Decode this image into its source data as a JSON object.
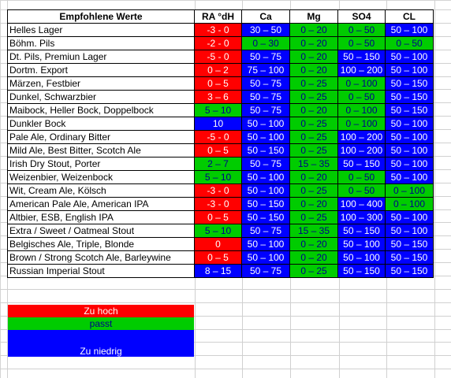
{
  "headers": [
    "Empfohlene Werte",
    "RA °dH",
    "Ca",
    "Mg",
    "SO4",
    "CL"
  ],
  "colors": {
    "red": "#ff0000",
    "green": "#00cc00",
    "blue": "#0000ff"
  },
  "rows": [
    {
      "name": "Helles Lager",
      "cells": [
        [
          "-3 - 0",
          "red"
        ],
        [
          "30 – 50",
          "blue"
        ],
        [
          "0 – 20",
          "green"
        ],
        [
          "0 – 50",
          "green"
        ],
        [
          "50 – 100",
          "blue"
        ]
      ]
    },
    {
      "name": "Böhm. Pils",
      "cells": [
        [
          "-2 - 0",
          "red"
        ],
        [
          "0 – 30",
          "green"
        ],
        [
          "0 – 20",
          "green"
        ],
        [
          "0 – 50",
          "green"
        ],
        [
          "0 – 50",
          "green"
        ]
      ]
    },
    {
      "name": "Dt. Pils, Premiun Lager",
      "cells": [
        [
          "-5 - 0",
          "red"
        ],
        [
          "50 – 75",
          "blue"
        ],
        [
          "0 – 20",
          "green"
        ],
        [
          "50 – 150",
          "blue"
        ],
        [
          "50 – 100",
          "blue"
        ]
      ]
    },
    {
      "name": "Dortm. Export",
      "cells": [
        [
          "0 – 2",
          "red"
        ],
        [
          "75 – 100",
          "blue"
        ],
        [
          "0 – 20",
          "green"
        ],
        [
          "100 – 200",
          "blue"
        ],
        [
          "50 – 100",
          "blue"
        ]
      ]
    },
    {
      "name": "Märzen, Festbier",
      "cells": [
        [
          "0 – 5",
          "red"
        ],
        [
          "50 – 75",
          "blue"
        ],
        [
          "0 – 25",
          "green"
        ],
        [
          "0 – 100",
          "green"
        ],
        [
          "50 – 150",
          "blue"
        ]
      ]
    },
    {
      "name": "Dunkel, Schwarzbier",
      "cells": [
        [
          "3 – 6",
          "red"
        ],
        [
          "50 – 75",
          "blue"
        ],
        [
          "0 – 25",
          "green"
        ],
        [
          "0 – 50",
          "green"
        ],
        [
          "50 – 150",
          "blue"
        ]
      ]
    },
    {
      "name": "Maibock, Heller Bock, Doppelbock",
      "cells": [
        [
          "5 – 10",
          "green"
        ],
        [
          "50 – 75",
          "blue"
        ],
        [
          "0 – 20",
          "green"
        ],
        [
          "0 – 100",
          "green"
        ],
        [
          "50 – 150",
          "blue"
        ]
      ]
    },
    {
      "name": "Dunkler Bock",
      "cells": [
        [
          "10",
          "blue"
        ],
        [
          "50 – 100",
          "blue"
        ],
        [
          "0 – 25",
          "green"
        ],
        [
          "0 – 100",
          "green"
        ],
        [
          "50 – 100",
          "blue"
        ]
      ]
    },
    {
      "name": "Pale Ale, Ordinary Bitter",
      "cells": [
        [
          "-5 - 0",
          "red"
        ],
        [
          "50 – 100",
          "blue"
        ],
        [
          "0 – 25",
          "green"
        ],
        [
          "100 – 200",
          "blue"
        ],
        [
          "50 – 100",
          "blue"
        ]
      ]
    },
    {
      "name": "Mild Ale, Best Bitter, Scotch Ale",
      "cells": [
        [
          "0 – 5",
          "red"
        ],
        [
          "50 – 150",
          "blue"
        ],
        [
          "0 – 25",
          "green"
        ],
        [
          "100 – 200",
          "blue"
        ],
        [
          "50 – 100",
          "blue"
        ]
      ]
    },
    {
      "name": "Irish Dry Stout, Porter",
      "cells": [
        [
          "2 – 7",
          "green"
        ],
        [
          "50 – 75",
          "blue"
        ],
        [
          "15 – 35",
          "green"
        ],
        [
          "50 – 150",
          "blue"
        ],
        [
          "50 – 100",
          "blue"
        ]
      ]
    },
    {
      "name": "Weizenbier, Weizenbock",
      "cells": [
        [
          "5 – 10",
          "green"
        ],
        [
          "50 – 100",
          "blue"
        ],
        [
          "0 – 20",
          "green"
        ],
        [
          "0 – 50",
          "green"
        ],
        [
          "50 – 100",
          "blue"
        ]
      ]
    },
    {
      "name": "Wit, Cream Ale, Kölsch",
      "cells": [
        [
          "-3 - 0",
          "red"
        ],
        [
          "50 – 100",
          "blue"
        ],
        [
          "0 – 25",
          "green"
        ],
        [
          "0 – 50",
          "green"
        ],
        [
          "0 – 100",
          "green"
        ]
      ]
    },
    {
      "name": "American Pale Ale, American IPA",
      "cells": [
        [
          "-3 - 0",
          "red"
        ],
        [
          "50 – 150",
          "blue"
        ],
        [
          "0 – 20",
          "green"
        ],
        [
          "100 – 400",
          "blue"
        ],
        [
          "0 – 100",
          "green"
        ]
      ]
    },
    {
      "name": "Altbier, ESB, English IPA",
      "cells": [
        [
          "0 – 5",
          "red"
        ],
        [
          "50 – 150",
          "blue"
        ],
        [
          "0 – 25",
          "green"
        ],
        [
          "100 – 300",
          "blue"
        ],
        [
          "50 – 100",
          "blue"
        ]
      ]
    },
    {
      "name": "Extra / Sweet / Oatmeal Stout",
      "cells": [
        [
          "5 – 10",
          "green"
        ],
        [
          "50 – 75",
          "blue"
        ],
        [
          "15 – 35",
          "green"
        ],
        [
          "50 – 150",
          "blue"
        ],
        [
          "50 – 100",
          "blue"
        ]
      ]
    },
    {
      "name": "Belgisches Ale, Triple, Blonde",
      "cells": [
        [
          "0",
          "red"
        ],
        [
          "50 – 100",
          "blue"
        ],
        [
          "0 – 20",
          "green"
        ],
        [
          "50 – 100",
          "blue"
        ],
        [
          "50 – 150",
          "blue"
        ]
      ]
    },
    {
      "name": "Brown / Strong Scotch Ale, Barleywine",
      "cells": [
        [
          "0 – 5",
          "red"
        ],
        [
          "50 – 100",
          "blue"
        ],
        [
          "0 – 20",
          "green"
        ],
        [
          "50 – 100",
          "blue"
        ],
        [
          "50 – 150",
          "blue"
        ]
      ]
    },
    {
      "name": "Russian Imperial Stout",
      "cells": [
        [
          "8 – 15",
          "blue"
        ],
        [
          "50 – 75",
          "blue"
        ],
        [
          "0 – 25",
          "green"
        ],
        [
          "50 – 150",
          "blue"
        ],
        [
          "50 – 150",
          "blue"
        ]
      ]
    }
  ],
  "legend": [
    {
      "label": "Zu hoch",
      "color": "red"
    },
    {
      "label": "passt",
      "color": "green"
    },
    {
      "label": "Zu niedrig",
      "color": "blue"
    }
  ]
}
